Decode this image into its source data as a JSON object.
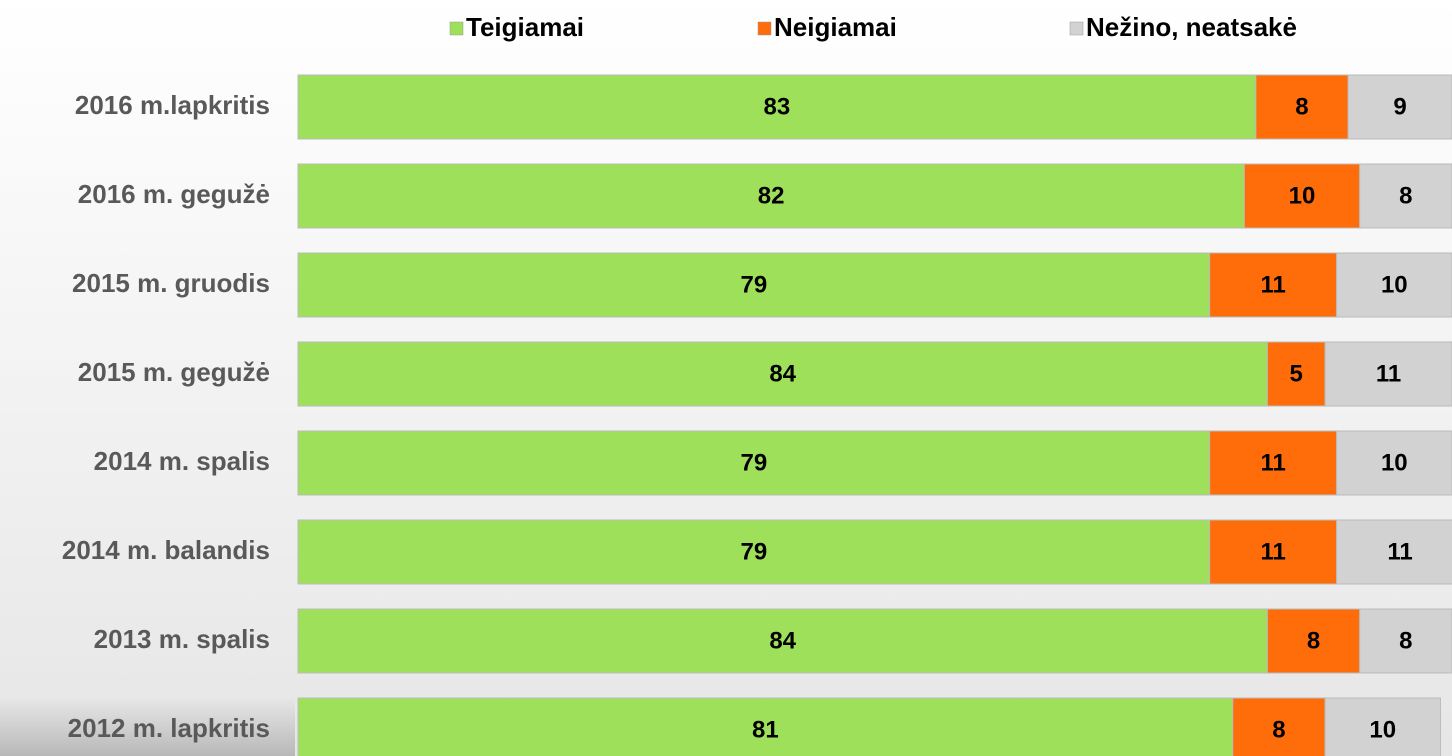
{
  "chart_data": {
    "type": "stacked-bar-horizontal",
    "categories": [
      "2016 m.lapkritis",
      "2016 m. gegužė",
      "2015 m. gruodis",
      "2015 m. gegužė",
      "2014 m. spalis",
      "2014 m. balandis",
      "2013 m. spalis",
      "2012 m. lapkritis"
    ],
    "series": [
      {
        "name": "Teigiamai",
        "color": "#9ee05a",
        "values": [
          83,
          82,
          79,
          84,
          79,
          79,
          84,
          81
        ]
      },
      {
        "name": "Neigiamai",
        "color": "#ff6d0b",
        "values": [
          8,
          10,
          11,
          5,
          11,
          11,
          8,
          8
        ]
      },
      {
        "name": "Nežino, neatsakė",
        "color": "#d2d2d2",
        "values": [
          9,
          8,
          10,
          11,
          10,
          11,
          8,
          10
        ]
      }
    ],
    "xlim": [
      0,
      100
    ]
  }
}
